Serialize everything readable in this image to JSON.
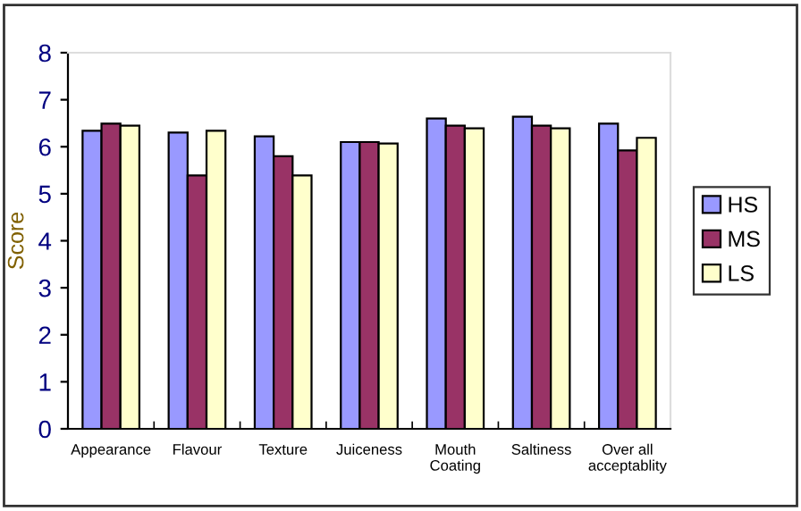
{
  "chart_data": {
    "type": "bar",
    "ylabel": "Score",
    "categories": [
      "Appearance",
      "Flavour",
      "Texture",
      "Juiceness",
      "Mouth\nCoating",
      "Saltiness",
      "Over all\nacceptablity"
    ],
    "series": [
      {
        "name": "HS",
        "color": "#9999ff",
        "values": [
          6.34,
          6.3,
          6.22,
          6.1,
          6.6,
          6.64,
          6.49
        ]
      },
      {
        "name": "MS",
        "color": "#993366",
        "values": [
          6.49,
          5.39,
          5.8,
          6.1,
          6.45,
          6.45,
          5.92
        ]
      },
      {
        "name": "LS",
        "color": "#ffffcc",
        "values": [
          6.45,
          6.34,
          5.39,
          6.07,
          6.39,
          6.39,
          6.19
        ]
      }
    ],
    "ylim": [
      0,
      8
    ],
    "yticks": [
      0,
      1,
      2,
      3,
      4,
      5,
      6,
      7,
      8
    ],
    "grid": false,
    "legend": "right"
  }
}
